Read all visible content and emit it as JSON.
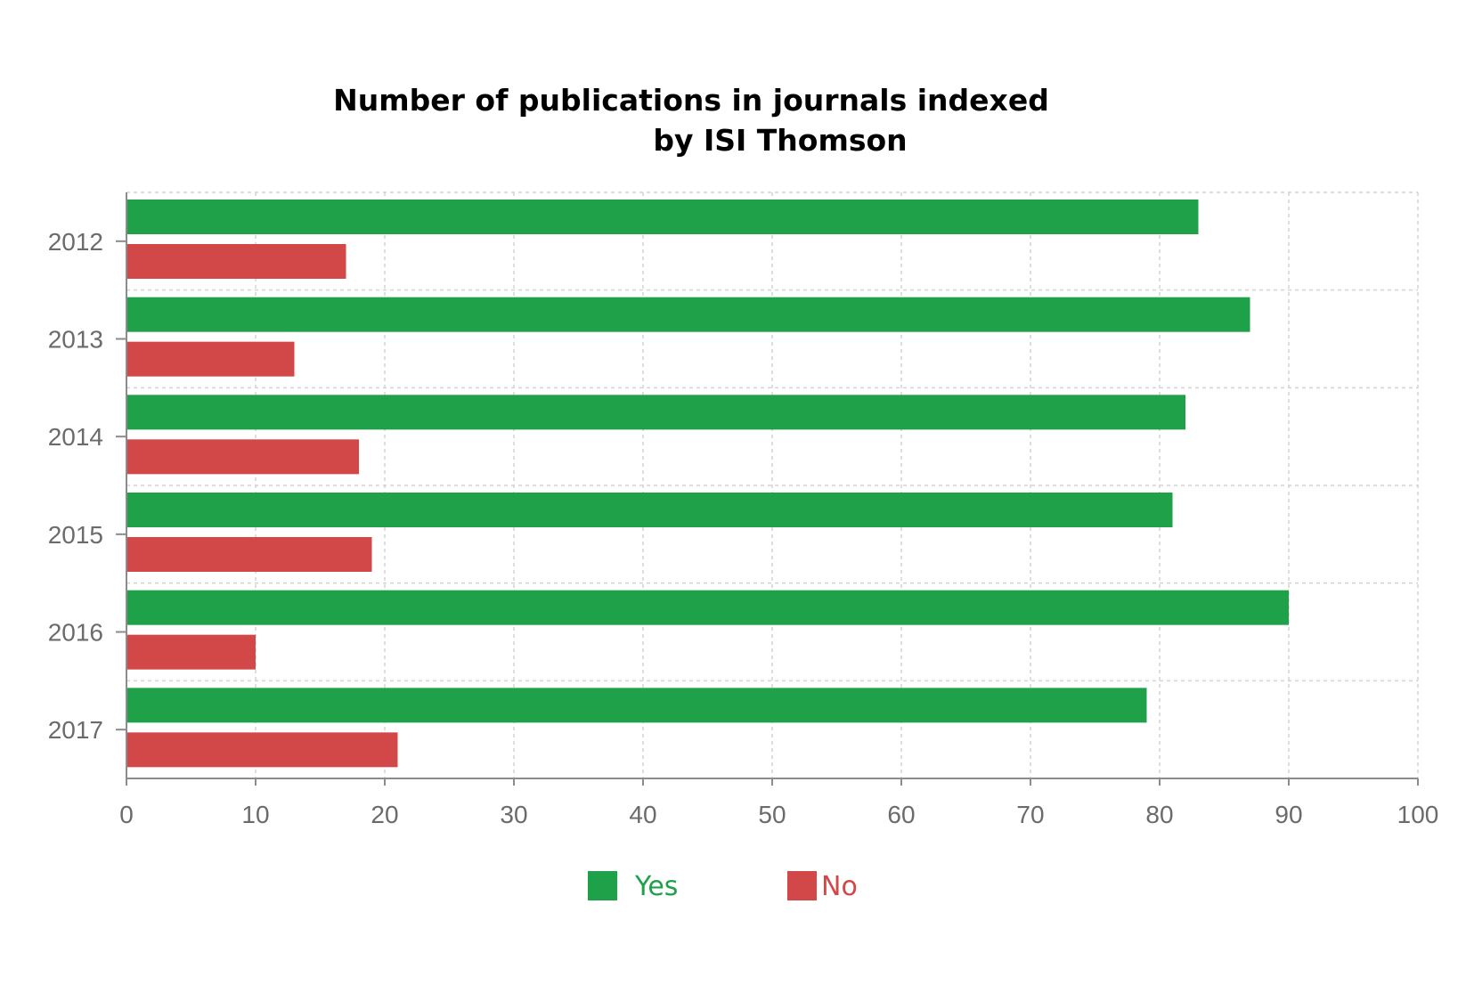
{
  "chart_data": {
    "type": "bar",
    "orientation": "horizontal",
    "title": [
      "Number of publications in journals indexed",
      "by ISI Thomson"
    ],
    "categories": [
      "2012",
      "2013",
      "2014",
      "2015",
      "2016",
      "2017"
    ],
    "series": [
      {
        "name": "Yes",
        "color": "#1fa149",
        "values": [
          83,
          87,
          82,
          81,
          90,
          79
        ]
      },
      {
        "name": "No",
        "color": "#d24747",
        "values": [
          17,
          13,
          18,
          19,
          10,
          21
        ]
      }
    ],
    "xlim": [
      0,
      100
    ],
    "xticks": [
      "0",
      "10",
      "20",
      "30",
      "40",
      "50",
      "60",
      "70",
      "80",
      "90",
      "100"
    ],
    "grid": true,
    "legend_position": "bottom"
  }
}
